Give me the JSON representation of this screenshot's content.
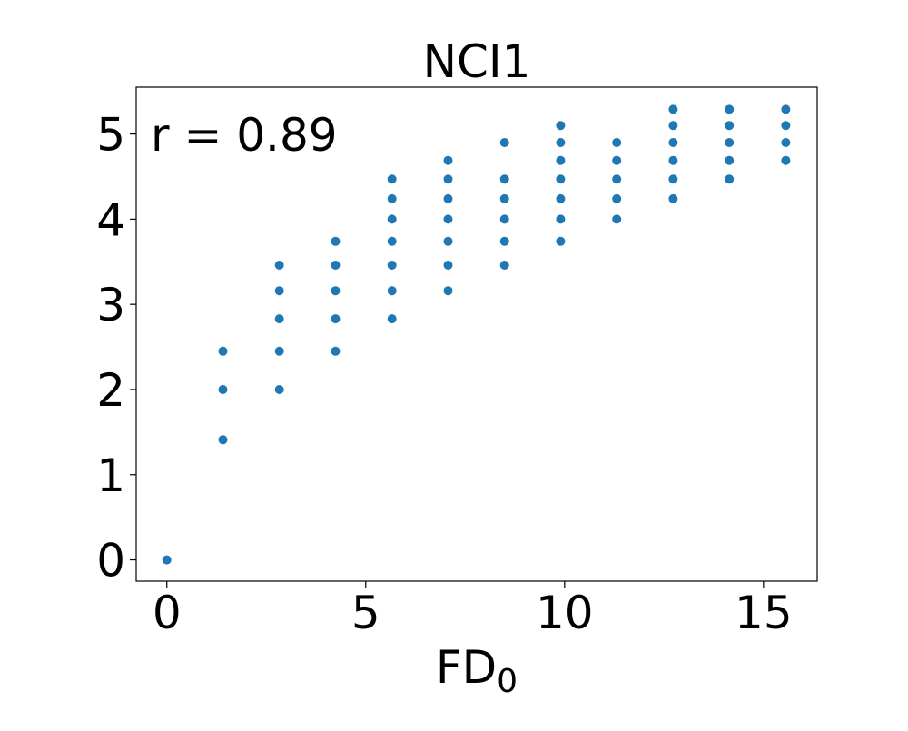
{
  "chart_data": {
    "type": "scatter",
    "title": "NCI1",
    "xlabel": {
      "base": "FD",
      "subscript": "0"
    },
    "ylabel": "",
    "annotation": "r =  0.89",
    "xlim": [
      -0.77,
      16.35
    ],
    "ylim": [
      -0.25,
      5.55
    ],
    "xticks": [
      0,
      5,
      10,
      15
    ],
    "yticks": [
      0,
      1,
      2,
      3,
      4,
      5
    ],
    "xtick_labels": [
      "0",
      "5",
      "10",
      "15"
    ],
    "ytick_labels": [
      "0",
      "1",
      "2",
      "3",
      "4",
      "5"
    ],
    "grid": false,
    "marker_color": "#1f77b4",
    "series": [
      {
        "points": [
          [
            0.0,
            0.0
          ],
          [
            1.41,
            1.41
          ],
          [
            1.41,
            2.0
          ],
          [
            1.41,
            2.45
          ],
          [
            2.83,
            2.0
          ],
          [
            2.83,
            2.45
          ],
          [
            2.83,
            2.83
          ],
          [
            2.83,
            3.16
          ],
          [
            2.83,
            3.46
          ],
          [
            4.24,
            2.45
          ],
          [
            4.24,
            2.83
          ],
          [
            4.24,
            3.16
          ],
          [
            4.24,
            3.46
          ],
          [
            4.24,
            3.74
          ],
          [
            5.66,
            2.83
          ],
          [
            5.66,
            3.16
          ],
          [
            5.66,
            3.46
          ],
          [
            5.66,
            3.74
          ],
          [
            5.66,
            4.0
          ],
          [
            5.66,
            4.24
          ],
          [
            5.66,
            4.47
          ],
          [
            7.07,
            3.16
          ],
          [
            7.07,
            3.46
          ],
          [
            7.07,
            3.74
          ],
          [
            7.07,
            4.0
          ],
          [
            7.07,
            4.24
          ],
          [
            7.07,
            4.47
          ],
          [
            7.07,
            4.69
          ],
          [
            8.49,
            3.46
          ],
          [
            8.49,
            3.74
          ],
          [
            8.49,
            4.0
          ],
          [
            8.49,
            4.24
          ],
          [
            8.49,
            4.47
          ],
          [
            8.49,
            4.9
          ],
          [
            9.9,
            3.74
          ],
          [
            9.9,
            4.0
          ],
          [
            9.9,
            4.24
          ],
          [
            9.9,
            4.47
          ],
          [
            9.9,
            4.69
          ],
          [
            9.9,
            4.9
          ],
          [
            9.9,
            5.1
          ],
          [
            11.31,
            4.0
          ],
          [
            11.31,
            4.24
          ],
          [
            11.31,
            4.47
          ],
          [
            11.31,
            4.69
          ],
          [
            11.31,
            4.9
          ],
          [
            12.73,
            4.24
          ],
          [
            12.73,
            4.47
          ],
          [
            12.73,
            4.69
          ],
          [
            12.73,
            4.9
          ],
          [
            12.73,
            5.1
          ],
          [
            12.73,
            5.29
          ],
          [
            14.14,
            4.47
          ],
          [
            14.14,
            4.69
          ],
          [
            14.14,
            4.9
          ],
          [
            14.14,
            5.1
          ],
          [
            14.14,
            5.29
          ],
          [
            15.56,
            4.69
          ],
          [
            15.56,
            4.9
          ],
          [
            15.56,
            5.1
          ],
          [
            15.56,
            5.29
          ]
        ]
      }
    ]
  }
}
